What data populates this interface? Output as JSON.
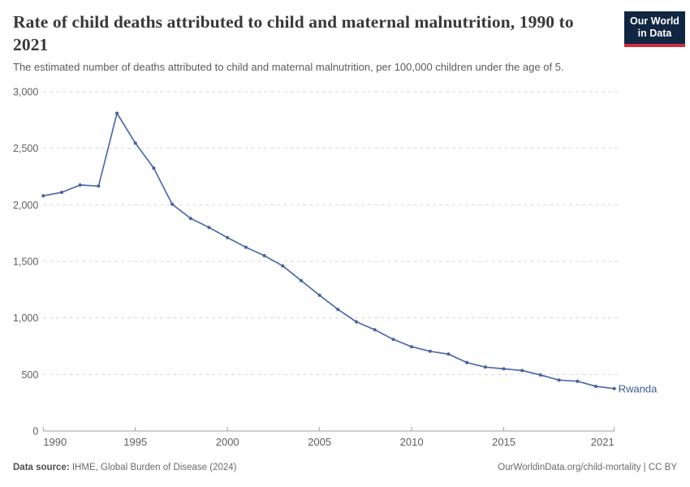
{
  "header": {
    "title": "Rate of child deaths attributed to child and maternal malnutrition, 1990 to 2021",
    "subtitle": "The estimated number of deaths attributed to child and maternal malnutrition, per 100,000 children under the age of 5.",
    "logo": {
      "line1": "Our World",
      "line2": "in Data",
      "bg_color": "#102642",
      "accent_color": "#d02e3f"
    }
  },
  "chart_data": {
    "type": "line",
    "title": "Rate of child deaths attributed to child and maternal malnutrition, 1990 to 2021",
    "xlabel": "",
    "ylabel": "",
    "ylim": [
      0,
      3000
    ],
    "xlim": [
      1990,
      2021
    ],
    "yticks": [
      0,
      500,
      1000,
      1500,
      2000,
      2500,
      3000
    ],
    "xticks": [
      1990,
      1995,
      2000,
      2005,
      2010,
      2015,
      2021
    ],
    "grid": "horizontal-dashed",
    "legend_position": "end-of-line-label",
    "series": [
      {
        "name": "Rwanda",
        "color": "#4d6bab",
        "marker_color": "#44609e",
        "label_color": "#3d5c99",
        "x": [
          1990,
          1991,
          1992,
          1993,
          1994,
          1995,
          1996,
          1997,
          1998,
          1999,
          2000,
          2001,
          2002,
          2003,
          2004,
          2005,
          2006,
          2007,
          2008,
          2009,
          2010,
          2011,
          2012,
          2013,
          2014,
          2015,
          2016,
          2017,
          2018,
          2019,
          2020,
          2021
        ],
        "values": [
          2080,
          2110,
          2175,
          2165,
          2810,
          2545,
          2325,
          2005,
          1880,
          1800,
          1710,
          1625,
          1550,
          1460,
          1330,
          1200,
          1075,
          965,
          895,
          810,
          745,
          705,
          680,
          605,
          565,
          550,
          535,
          495,
          450,
          440,
          395,
          375
        ]
      }
    ]
  },
  "footer": {
    "source_label": "Data source:",
    "source_text": " IHME, Global Burden of Disease (2024)",
    "link_text": "OurWorldinData.org/child-mortality | CC BY"
  },
  "colors": {
    "gridline": "#d6d6d6",
    "axis": "#9e9e9e",
    "tick_label": "#5e5e5e"
  }
}
